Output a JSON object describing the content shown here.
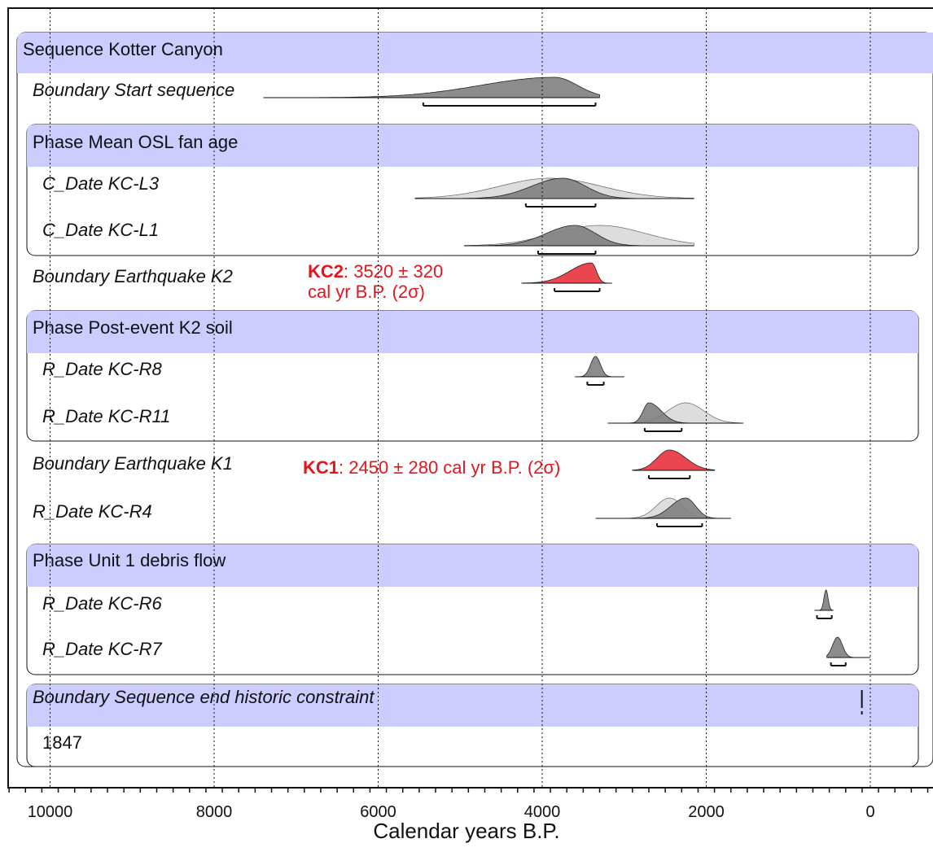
{
  "chart_data": {
    "type": "oxcal-multiplot",
    "xlabel": "Calendar years B.P.",
    "x_axis": {
      "reversed": true,
      "min": 600,
      "max": -700,
      "ticks": [
        10000,
        8000,
        6000,
        4000,
        2000,
        0
      ]
    },
    "grid": {
      "vertical_dotted": [
        10000,
        8000,
        6000,
        4000,
        2000,
        0
      ]
    },
    "groups": [
      {
        "id": "sequence",
        "label": "Sequence Kotter Canyon",
        "level": 0
      },
      {
        "id": "phase_osl",
        "label": "Phase Mean OSL fan age",
        "level": 1
      },
      {
        "id": "phase_soil",
        "label": "Phase Post-event K2 soil",
        "level": 1
      },
      {
        "id": "phase_unit1",
        "label": "Phase Unit 1 debris flow",
        "level": 1
      },
      {
        "id": "boundary_end",
        "label": "Boundary Sequence end historic constraint",
        "level": 1,
        "italic": true,
        "note": "1847"
      }
    ],
    "rows": [
      {
        "label": "Boundary Start sequence",
        "dist": {
          "from": 7400,
          "to": 3300,
          "peak": 3850,
          "sigma_left": 900,
          "sigma_right": 280,
          "color": "#808080"
        },
        "prior": null,
        "range": [
          5450,
          3350
        ]
      },
      {
        "label": "C_Date KC-L3",
        "dist": {
          "from": 5550,
          "to": 2150,
          "peak": 3750,
          "sigma_left": 380,
          "sigma_right": 280,
          "color": "#808080"
        },
        "prior": {
          "from": 5550,
          "to": 2150,
          "peak": 3900,
          "sigma": 620
        },
        "range": [
          4200,
          3350
        ]
      },
      {
        "label": "C_Date KC-L1",
        "dist": {
          "from": 4950,
          "to": 2150,
          "peak": 3600,
          "sigma_left": 350,
          "sigma_right": 250,
          "color": "#808080"
        },
        "prior": {
          "from": 4950,
          "to": 2150,
          "peak": 3300,
          "sigma": 560
        },
        "range": [
          4050,
          3350
        ]
      },
      {
        "label": "Boundary Earthquake K2",
        "dist": {
          "from": 4250,
          "to": 3150,
          "peak": 3400,
          "sigma_left": 260,
          "sigma_right": 60,
          "color": "#e8323c"
        },
        "prior": null,
        "range": [
          3850,
          3300
        ]
      },
      {
        "label": "R_Date KC-R8",
        "dist": {
          "from": 3600,
          "to": 3000,
          "peak": 3350,
          "sigma_left": 60,
          "sigma_right": 60,
          "color": "#808080"
        },
        "prior": null,
        "range": [
          3450,
          3250
        ]
      },
      {
        "label": "R_Date KC-R11",
        "dist": {
          "from": 3200,
          "to": 1550,
          "peak": 2700,
          "sigma_left": 70,
          "sigma_right": 150,
          "color": "#808080"
        },
        "prior": {
          "from": 3200,
          "to": 1550,
          "peak": 2250,
          "sigma": 220
        },
        "range": [
          2750,
          2300
        ]
      },
      {
        "label": "Boundary Earthquake K1",
        "dist": {
          "from": 2900,
          "to": 1900,
          "peak": 2450,
          "sigma_left": 150,
          "sigma_right": 200,
          "color": "#e8323c"
        },
        "prior": null,
        "range": [
          2700,
          2200
        ]
      },
      {
        "label": "R_Date KC-R4",
        "dist": {
          "from": 3350,
          "to": 1700,
          "peak": 2250,
          "sigma_left": 180,
          "sigma_right": 120,
          "color": "#808080"
        },
        "prior": {
          "from": 3350,
          "to": 1700,
          "peak": 2450,
          "sigma": 160
        },
        "range": [
          2600,
          2050
        ]
      },
      {
        "label": "R_Date KC-R6",
        "dist": {
          "from": 680,
          "to": 450,
          "peak": 540,
          "sigma_left": 25,
          "sigma_right": 25,
          "color": "#808080"
        },
        "prior": null,
        "range": [
          650,
          470
        ]
      },
      {
        "label": "R_Date KC-R7",
        "dist": {
          "from": 530,
          "to": 0,
          "peak": 400,
          "sigma_left": 60,
          "sigma_right": 60,
          "color": "#808080"
        },
        "prior": null,
        "range": [
          480,
          300
        ]
      },
      {
        "label": "",
        "dist": null,
        "prior": null,
        "range": [
          103,
          103
        ]
      }
    ],
    "annotations": [
      {
        "id": "kc2",
        "bold": "KC2",
        "text": ": 3520 ± 320",
        "line2": "cal yr B.P. (2σ)"
      },
      {
        "id": "kc1",
        "bold": "KC1",
        "text": ": 2450 ± 280 cal yr B.P. (2σ)"
      }
    ]
  }
}
